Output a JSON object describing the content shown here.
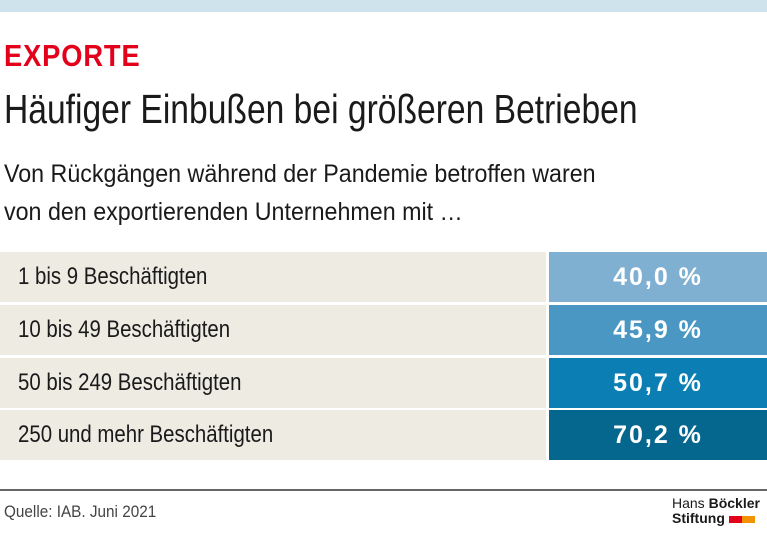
{
  "kicker": "EXPORTE",
  "title": "Häufiger Einbußen bei größeren Betrieben",
  "subtitle": [
    "Von Rückgängen während der Pandemie betroffen waren",
    "von den exportierenden Unternehmen mit …"
  ],
  "chart_data": {
    "type": "table",
    "categories": [
      "1 bis 9 Beschäftigten",
      "10 bis 49 Beschäftigten",
      "50 bis 249 Beschäftigten",
      "250 und mehr Beschäftigten"
    ],
    "values": [
      40.0,
      45.9,
      50.7,
      70.2
    ],
    "labels": [
      "40,0 %",
      "45,9 %",
      "50,7 %",
      "70,2 %"
    ],
    "colors": [
      "#7fb0d2",
      "#4a97c4",
      "#0b7eb3",
      "#05678d"
    ]
  },
  "source": "Quelle: IAB. Juni 2021",
  "logo": {
    "line1a": "Hans",
    "line1b": "Böckler",
    "line2": "Stiftung",
    "colors": [
      "#e3001b",
      "#f39200"
    ]
  }
}
